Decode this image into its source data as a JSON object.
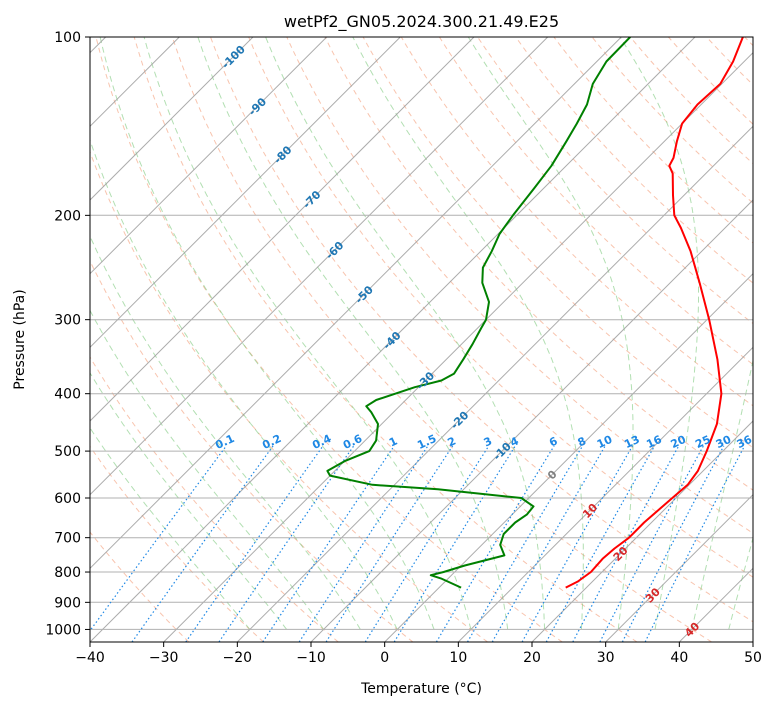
{
  "chart_data": {
    "type": "skew-t",
    "title": "wetPf2_GN05.2024.300.21.49.E25",
    "xlabel": "Temperature (°C)",
    "ylabel": "Pressure (hPa)",
    "xlim": [
      -40,
      50
    ],
    "ylim_hpa": [
      1050,
      100
    ],
    "log_y": true,
    "grid": true,
    "x_ticks": [
      "−40",
      "−30",
      "−20",
      "−10",
      "0",
      "10",
      "20",
      "30",
      "40",
      "50"
    ],
    "y_ticks": [
      "100",
      "200",
      "300",
      "400",
      "500",
      "600",
      "700",
      "800",
      "900",
      "1000"
    ],
    "series": [
      {
        "name": "",
        "color": "#ff0000",
        "points": [
          {
            "p": 850,
            "t": 17.2
          },
          {
            "p": 830,
            "t": 18.0
          },
          {
            "p": 800,
            "t": 18.5
          },
          {
            "p": 760,
            "t": 18.3
          },
          {
            "p": 730,
            "t": 18.5
          },
          {
            "p": 700,
            "t": 19.0
          },
          {
            "p": 660,
            "t": 19.0
          },
          {
            "p": 600,
            "t": 19.5
          },
          {
            "p": 570,
            "t": 19.8
          },
          {
            "p": 540,
            "t": 19.3
          },
          {
            "p": 500,
            "t": 17.8
          },
          {
            "p": 450,
            "t": 15.5
          },
          {
            "p": 400,
            "t": 12.0
          },
          {
            "p": 350,
            "t": 6.8
          },
          {
            "p": 300,
            "t": 0.3
          },
          {
            "p": 260,
            "t": -6.0
          },
          {
            "p": 230,
            "t": -11.5
          },
          {
            "p": 210,
            "t": -16.0
          },
          {
            "p": 200,
            "t": -18.6
          },
          {
            "p": 185,
            "t": -21.5
          },
          {
            "p": 170,
            "t": -24.5
          },
          {
            "p": 165,
            "t": -26.0
          },
          {
            "p": 160,
            "t": -26.5
          },
          {
            "p": 150,
            "t": -28.3
          },
          {
            "p": 140,
            "t": -30.0
          },
          {
            "p": 130,
            "t": -30.5
          },
          {
            "p": 120,
            "t": -30.2
          },
          {
            "p": 110,
            "t": -31.5
          },
          {
            "p": 100,
            "t": -33.5
          }
        ]
      },
      {
        "name": "",
        "color": "#008000",
        "points": [
          {
            "p": 850,
            "t": 3.0
          },
          {
            "p": 820,
            "t": -1.0
          },
          {
            "p": 810,
            "t": -2.8
          },
          {
            "p": 800,
            "t": -1.5
          },
          {
            "p": 780,
            "t": 0.5
          },
          {
            "p": 750,
            "t": 4.5
          },
          {
            "p": 720,
            "t": 2.5
          },
          {
            "p": 690,
            "t": 1.5
          },
          {
            "p": 660,
            "t": 1.5
          },
          {
            "p": 640,
            "t": 2.0
          },
          {
            "p": 620,
            "t": 1.8
          },
          {
            "p": 600,
            "t": -1.0
          },
          {
            "p": 580,
            "t": -13.5
          },
          {
            "p": 570,
            "t": -23.0
          },
          {
            "p": 550,
            "t": -30.0
          },
          {
            "p": 540,
            "t": -31.0
          },
          {
            "p": 520,
            "t": -30.0
          },
          {
            "p": 500,
            "t": -28.0
          },
          {
            "p": 480,
            "t": -28.5
          },
          {
            "p": 450,
            "t": -30.5
          },
          {
            "p": 430,
            "t": -33.0
          },
          {
            "p": 420,
            "t": -34.5
          },
          {
            "p": 410,
            "t": -34.0
          },
          {
            "p": 390,
            "t": -30.5
          },
          {
            "p": 380,
            "t": -27.8
          },
          {
            "p": 370,
            "t": -27.0
          },
          {
            "p": 350,
            "t": -27.7
          },
          {
            "p": 330,
            "t": -28.5
          },
          {
            "p": 310,
            "t": -29.5
          },
          {
            "p": 300,
            "t": -30.0
          },
          {
            "p": 280,
            "t": -32.0
          },
          {
            "p": 260,
            "t": -35.5
          },
          {
            "p": 245,
            "t": -37.5
          },
          {
            "p": 230,
            "t": -38.5
          },
          {
            "p": 215,
            "t": -39.8
          },
          {
            "p": 200,
            "t": -40.5
          },
          {
            "p": 180,
            "t": -41.3
          },
          {
            "p": 165,
            "t": -42.0
          },
          {
            "p": 150,
            "t": -43.3
          },
          {
            "p": 140,
            "t": -44.3
          },
          {
            "p": 130,
            "t": -45.5
          },
          {
            "p": 120,
            "t": -47.5
          },
          {
            "p": 110,
            "t": -48.7
          },
          {
            "p": 100,
            "t": -48.8
          }
        ]
      }
    ],
    "isotherm_labels": [
      "-100",
      "-90",
      "-80",
      "-70",
      "-60",
      "-50",
      "-40",
      "-30",
      "-20",
      "-10",
      "0",
      "10",
      "20",
      "30",
      "40"
    ],
    "mixing_ratio_labels": [
      "0.1",
      "0.2",
      "0.4",
      "0.6",
      "1",
      "1.5",
      "2",
      "3",
      "4",
      "6",
      "8",
      "10",
      "13",
      "16",
      "20",
      "25",
      "30",
      "36"
    ],
    "colors": {
      "temperature": "#ff0000",
      "dewpoint": "#008000",
      "isotherm_label": "#1f77b4",
      "mixing_ratio": "#1e88e5",
      "dry_adiabat": "#f4a582",
      "moist_adiabat": "#7fc97f",
      "zero_label": "#808080",
      "warm_label": "#d62728"
    }
  }
}
